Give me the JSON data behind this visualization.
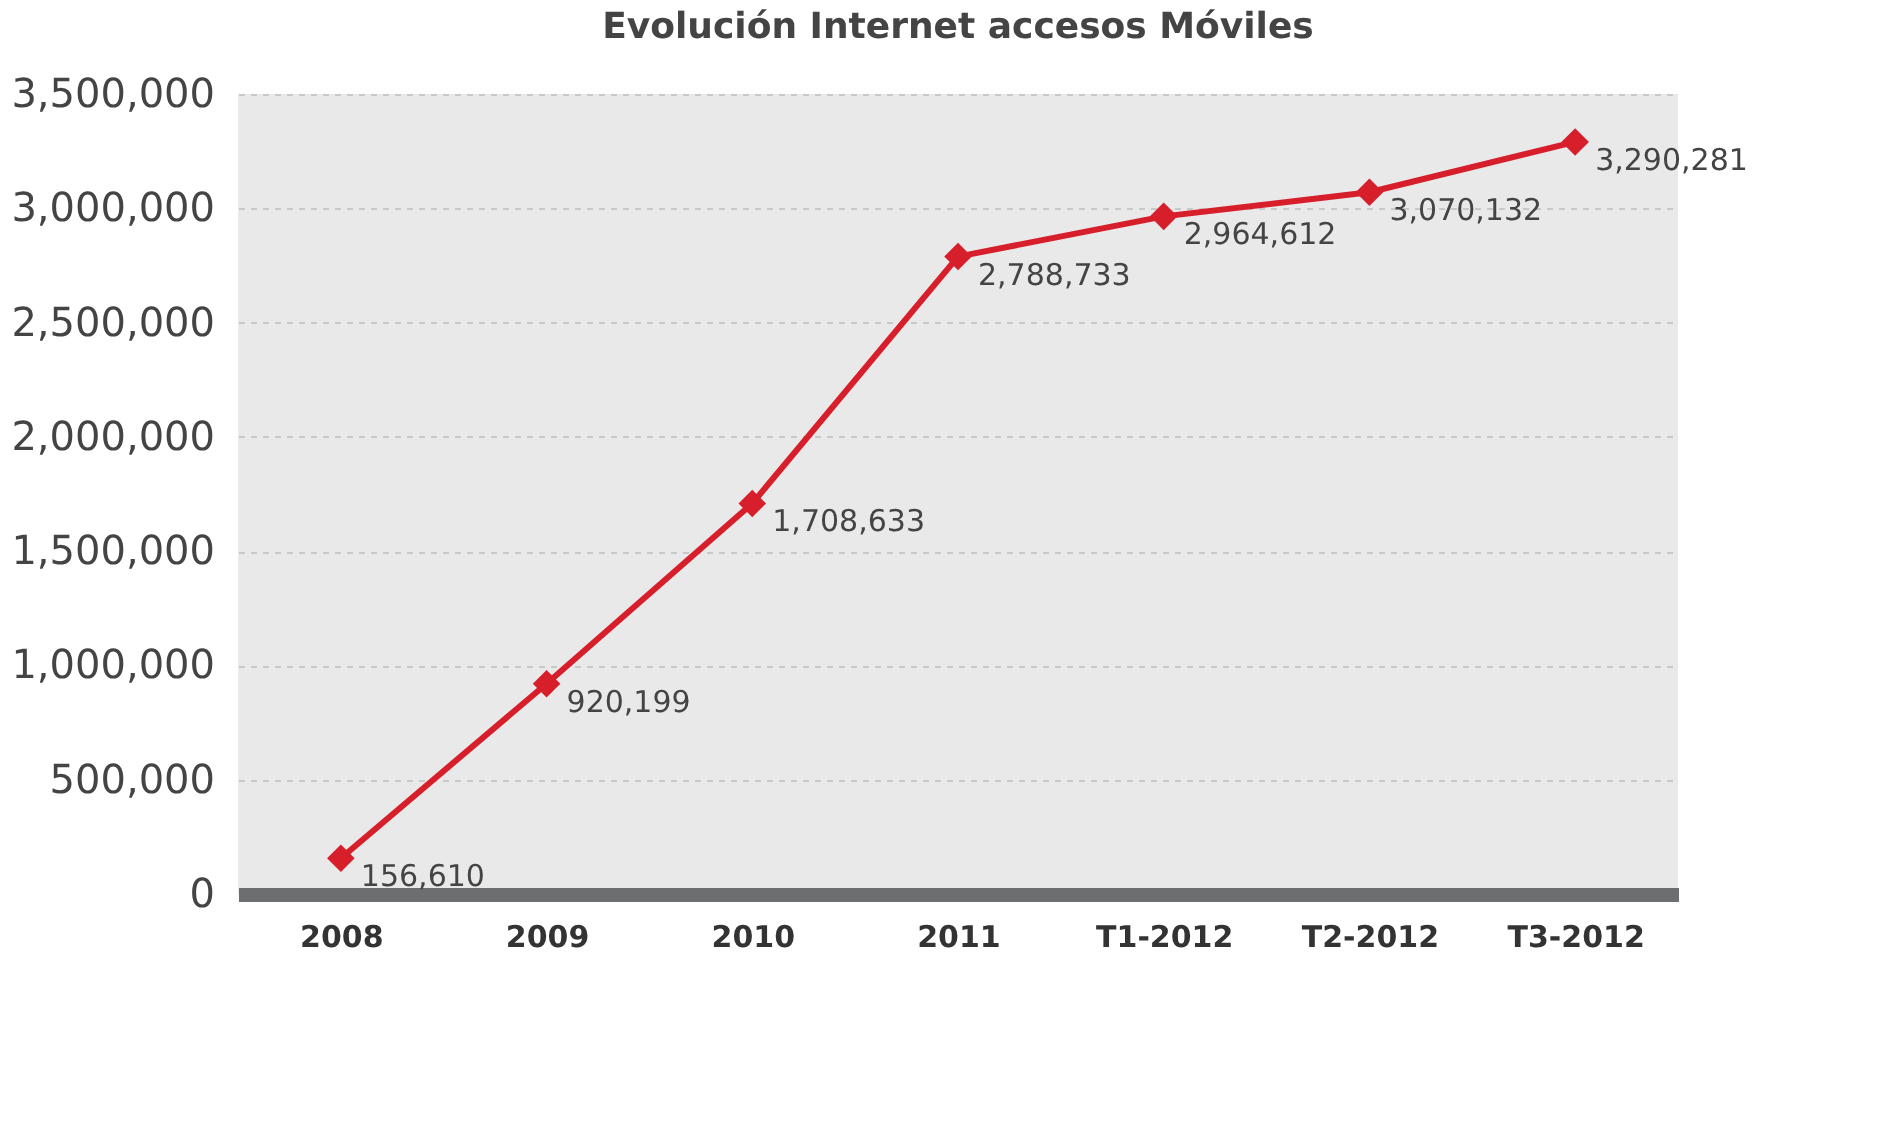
{
  "chart_data": {
    "type": "line",
    "title": "Evolución Internet accesos Móviles",
    "categories": [
      "2008",
      "2009",
      "2010",
      "2011",
      "T1-2012",
      "T2-2012",
      "T3-2012"
    ],
    "series": [
      {
        "color": "#d71f2b",
        "values": [
          156610,
          920199,
          1708633,
          2788733,
          2964612,
          3070132,
          3290281
        ],
        "value_labels": [
          "156,610",
          "920,199",
          "1,708,633",
          "2,788,733",
          "2,964,612",
          "3,070,132",
          "3,290,281"
        ]
      }
    ],
    "ylim": [
      0,
      3500000
    ],
    "yticks": [
      0,
      {
        "value": 500000,
        "label": "500,000"
      },
      {
        "value": 1000000,
        "label": "1,000,000"
      },
      {
        "value": 1500000,
        "label": "1,500,000"
      },
      {
        "value": 2000000,
        "label": "2,000,000"
      },
      {
        "value": 2500000,
        "label": "2,500,000"
      },
      {
        "value": 3000000,
        "label": "3,000,000"
      },
      {
        "value": 3500000,
        "label": "3,500,000"
      }
    ],
    "grid": "y",
    "marker": "diamond",
    "line_style": "solid",
    "legend": false
  }
}
